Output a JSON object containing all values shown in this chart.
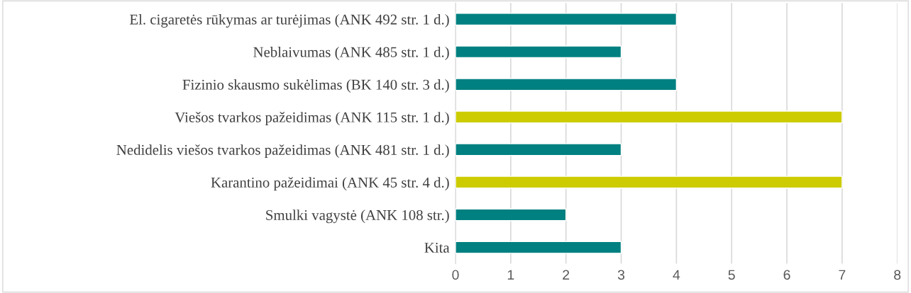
{
  "chart_data": {
    "type": "bar",
    "orientation": "horizontal",
    "categories": [
      "El. cigaretės rūkymas ar turėjimas (ANK 492 str. 1 d.)",
      "Neblaivumas (ANK 485 str. 1 d.)",
      "Fizinio skausmo sukėlimas (BK 140 str. 3 d.)",
      "Viešos tvarkos pažeidimas (ANK 115 str. 1 d.)",
      "Nedidelis viešos tvarkos pažeidimas (ANK 481 str. 1 d.)",
      "Karantino pažeidimai (ANK 45 str. 4 d.)",
      "Smulki vagystė (ANK 108 str.)",
      "Kita"
    ],
    "values": [
      4,
      3,
      4,
      7,
      3,
      7,
      2,
      3
    ],
    "colors": [
      "#008080",
      "#008080",
      "#008080",
      "#cccc00",
      "#008080",
      "#cccc00",
      "#008080",
      "#008080"
    ],
    "xlim": [
      0,
      8
    ],
    "xticks": [
      0,
      1,
      2,
      3,
      4,
      5,
      6,
      7,
      8
    ],
    "grid": "x",
    "legend": false
  }
}
